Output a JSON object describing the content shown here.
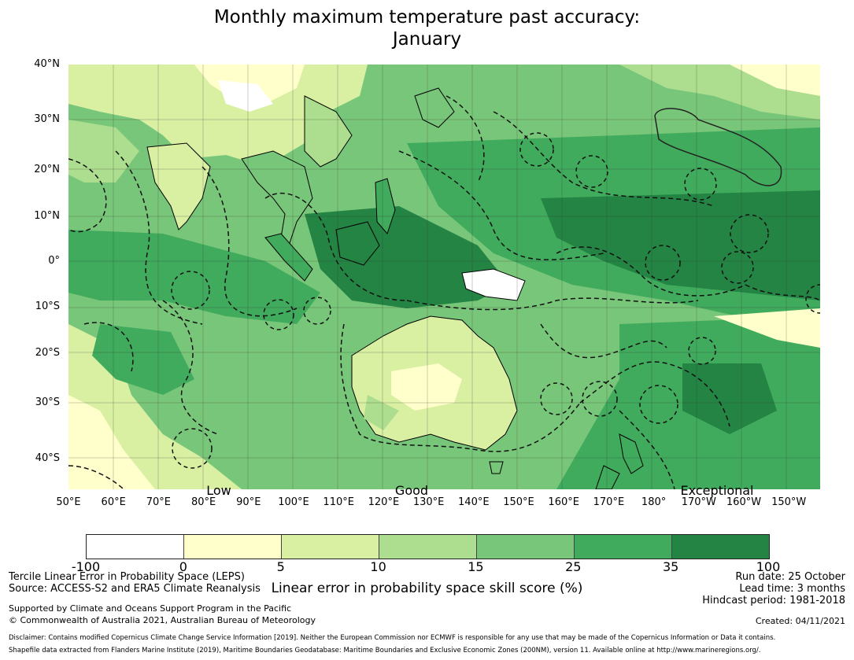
{
  "title": {
    "line1": "Monthly maximum temperature past accuracy:",
    "line2": "January"
  },
  "map": {
    "lat_labels": [
      "40°N",
      "30°N",
      "20°N",
      "10°N",
      "0°",
      "10°S",
      "20°S",
      "30°S",
      "40°S"
    ],
    "lon_labels": [
      "50°E",
      "60°E",
      "70°E",
      "80°E",
      "90°E",
      "100°E",
      "110°E",
      "120°E",
      "130°E",
      "140°E",
      "150°E",
      "160°E",
      "170°E",
      "180°",
      "170°W",
      "160°W",
      "150°W"
    ],
    "category_labels": [
      "Low",
      "Good",
      "Exceptional"
    ]
  },
  "colorbar": {
    "ticks": [
      "-100",
      "0",
      "5",
      "10",
      "15",
      "25",
      "35",
      "100"
    ],
    "colors": [
      "#ffffff",
      "#ffffcc",
      "#d9f0a3",
      "#addd8e",
      "#78c679",
      "#41ab5d",
      "#238443"
    ],
    "label": "Linear error in probability space skill score (%)"
  },
  "footer": {
    "method": "Tercile Linear Error in Probability Space (LEPS)",
    "source": "Source: ACCESS-S2 and ERA5 Climate Reanalysis",
    "support": "Supported by Climate and Oceans Support Program in the Pacific",
    "copyright": "© Commonwealth of Australia 2021, Australian Bureau of Meteorology",
    "run_date": "Run date: 25 October",
    "lead_time": "Lead time: 3 months",
    "hindcast": "Hindcast period: 1981-2018",
    "created": "Created: 04/11/2021",
    "disclaimer1": "Disclaimer: Contains modified Copernicus Climate Change Service Information [2019]. Neither the European Commission nor ECMWF is responsible for any use that may be made of the Copernicus Information or Data it contains.",
    "disclaimer2": "Shapefile data extracted from Flanders Marine Institute (2019), Maritime Boundaries Geodatabase: Maritime Boundaries and Exclusive Economic Zones (200NM), version 11. Available online at http://www.marineregions.org/."
  }
}
